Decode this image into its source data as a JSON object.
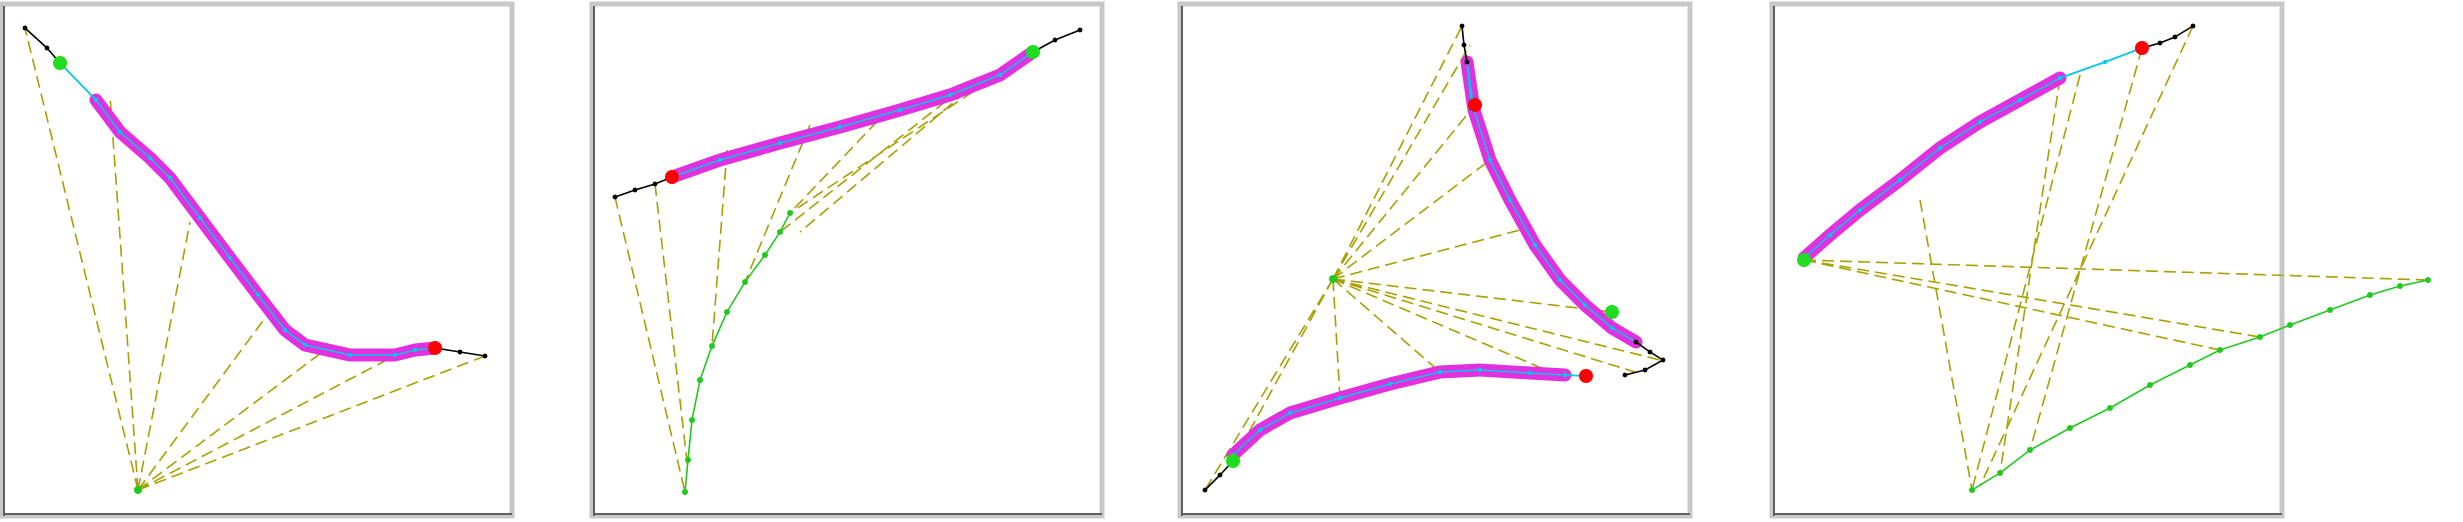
{
  "colors": {
    "background": "#ffffff",
    "frame": "#c8c8c8",
    "frame_dark": "#606060",
    "guide_dash": "#a8a000",
    "highlight_band": "#e030e0",
    "cyan_path": "#00c8e8",
    "green_path": "#20c820",
    "black_path": "#000000",
    "red_marker": "#ff0000",
    "green_marker": "#20dd20"
  },
  "panels": [
    {
      "id": "panel-1",
      "black_tail_start": [
        [
          25,
          28
        ],
        [
          47,
          48
        ],
        [
          60,
          63
        ]
      ],
      "cyan_segment": [
        [
          60,
          63
        ],
        [
          96,
          100
        ]
      ],
      "magenta_band": [
        [
          96,
          100
        ],
        [
          120,
          132
        ],
        [
          150,
          158
        ],
        [
          170,
          178
        ],
        [
          200,
          218
        ],
        [
          230,
          258
        ],
        [
          258,
          295
        ],
        [
          285,
          330
        ],
        [
          305,
          345
        ],
        [
          350,
          355
        ],
        [
          395,
          355
        ],
        [
          415,
          350
        ],
        [
          435,
          348
        ]
      ],
      "black_tail_end": [
        [
          435,
          348
        ],
        [
          460,
          352
        ],
        [
          485,
          356
        ]
      ],
      "red_marker": [
        435,
        348
      ],
      "green_marker": [
        60,
        63
      ],
      "green_path": [],
      "hub": [
        138,
        490
      ],
      "fan_targets": [
        [
          25,
          28
        ],
        [
          110,
          96
        ],
        [
          190,
          222
        ],
        [
          265,
          318
        ],
        [
          325,
          350
        ],
        [
          400,
          353
        ],
        [
          485,
          356
        ]
      ]
    },
    {
      "id": "panel-2",
      "black_tail_start": [
        [
          615,
          197
        ],
        [
          635,
          190
        ],
        [
          655,
          184
        ],
        [
          672,
          177
        ]
      ],
      "cyan_segment": [],
      "magenta_band": [
        [
          672,
          177
        ],
        [
          720,
          160
        ],
        [
          780,
          143
        ],
        [
          840,
          127
        ],
        [
          900,
          110
        ],
        [
          950,
          95
        ],
        [
          1000,
          75
        ],
        [
          1033,
          52
        ]
      ],
      "black_tail_end": [
        [
          1033,
          52
        ],
        [
          1055,
          40
        ],
        [
          1080,
          30
        ]
      ],
      "red_marker": [
        672,
        177
      ],
      "green_marker": [
        1033,
        52
      ],
      "green_path": [
        [
          685,
          492
        ],
        [
          688,
          460
        ],
        [
          692,
          420
        ],
        [
          700,
          380
        ],
        [
          712,
          346
        ],
        [
          727,
          312
        ],
        [
          745,
          282
        ],
        [
          765,
          255
        ],
        [
          780,
          232
        ],
        [
          790,
          213
        ]
      ],
      "hub": null,
      "fan_pairs": [
        [
          [
            615,
            197
          ],
          [
            685,
            492
          ]
        ],
        [
          [
            655,
            184
          ],
          [
            688,
            470
          ]
        ],
        [
          [
            727,
            150
          ],
          [
            712,
            346
          ]
        ],
        [
          [
            810,
            125
          ],
          [
            745,
            282
          ]
        ],
        [
          [
            890,
            108
          ],
          [
            790,
            213
          ]
        ],
        [
          [
            1033,
            52
          ],
          [
            790,
            213
          ]
        ],
        [
          [
            980,
            80
          ],
          [
            800,
            232
          ]
        ],
        [
          [
            960,
            90
          ],
          [
            780,
            232
          ]
        ]
      ]
    },
    {
      "id": "panel-3",
      "black_tail_start": [
        [
          1462,
          26
        ],
        [
          1464,
          45
        ],
        [
          1467,
          62
        ]
      ],
      "cyan_segment": [
        [
          1467,
          62
        ],
        [
          1472,
          110
        ]
      ],
      "magenta_band": [
        [
          1467,
          62
        ],
        [
          1474,
          110
        ],
        [
          1490,
          160
        ],
        [
          1510,
          200
        ],
        [
          1535,
          245
        ],
        [
          1560,
          280
        ],
        [
          1585,
          305
        ],
        [
          1612,
          328
        ],
        [
          1636,
          342
        ]
      ],
      "black_tail_end": [
        [
          1636,
          342
        ],
        [
          1650,
          352
        ],
        [
          1663,
          360
        ],
        [
          1645,
          370
        ],
        [
          1625,
          375
        ]
      ],
      "magenta_band_2": [
        [
          1233,
          455
        ],
        [
          1260,
          430
        ],
        [
          1290,
          413
        ],
        [
          1340,
          398
        ],
        [
          1390,
          384
        ],
        [
          1440,
          372
        ],
        [
          1480,
          370
        ],
        [
          1530,
          373
        ],
        [
          1565,
          375
        ]
      ],
      "cyan_segment_2": [
        [
          1565,
          375
        ],
        [
          1586,
          376
        ]
      ],
      "red_marker": [
        1586,
        376
      ],
      "red_marker_2": [
        1475,
        105
      ],
      "green_marker": [
        1612,
        312
      ],
      "green_marker_2": [
        1233,
        461
      ],
      "black_tail_2": [
        [
          1205,
          490
        ],
        [
          1220,
          475
        ],
        [
          1233,
          461
        ]
      ],
      "green_path": [],
      "hub": [
        1333,
        279
      ],
      "fan_targets": [
        [
          1462,
          26
        ],
        [
          1470,
          45
        ],
        [
          1475,
          105
        ],
        [
          1490,
          160
        ],
        [
          1520,
          230
        ],
        [
          1612,
          312
        ],
        [
          1660,
          360
        ],
        [
          1635,
          372
        ],
        [
          1560,
          376
        ],
        [
          1440,
          372
        ],
        [
          1340,
          398
        ],
        [
          1233,
          461
        ],
        [
          1205,
          490
        ]
      ]
    },
    {
      "id": "panel-4",
      "black_tail_start": [
        [
          2193,
          26
        ],
        [
          2175,
          37
        ],
        [
          2160,
          43
        ],
        [
          2142,
          48
        ]
      ],
      "cyan_segment": [
        [
          2142,
          48
        ],
        [
          2105,
          62
        ],
        [
          2060,
          78
        ]
      ],
      "magenta_band": [
        [
          2060,
          78
        ],
        [
          2020,
          100
        ],
        [
          1980,
          122
        ],
        [
          1940,
          148
        ],
        [
          1900,
          180
        ],
        [
          1860,
          210
        ],
        [
          1830,
          235
        ],
        [
          1804,
          258
        ]
      ],
      "black_tail_end": [],
      "red_marker": [
        2142,
        48
      ],
      "green_marker": [
        1804,
        260
      ],
      "green_path": [
        [
          1972,
          490
        ],
        [
          2000,
          473
        ],
        [
          2030,
          450
        ],
        [
          2070,
          428
        ],
        [
          2110,
          408
        ],
        [
          2150,
          385
        ],
        [
          2190,
          365
        ],
        [
          2220,
          350
        ],
        [
          2260,
          337
        ],
        [
          2290,
          325
        ],
        [
          2330,
          310
        ],
        [
          2370,
          295
        ],
        [
          2400,
          286
        ],
        [
          2428,
          280
        ]
      ],
      "hub": null,
      "fan_pairs": [
        [
          [
            1804,
            260
          ],
          [
            2428,
            280
          ]
        ],
        [
          [
            1804,
            260
          ],
          [
            2220,
            350
          ]
        ],
        [
          [
            1804,
            260
          ],
          [
            2260,
            337
          ]
        ],
        [
          [
            1920,
            200
          ],
          [
            1972,
            490
          ]
        ],
        [
          [
            2080,
            75
          ],
          [
            1972,
            490
          ]
        ],
        [
          [
            2193,
            26
          ],
          [
            1980,
            486
          ]
        ],
        [
          [
            2060,
            78
          ],
          [
            2000,
            473
          ]
        ],
        [
          [
            2142,
            48
          ],
          [
            2030,
            450
          ]
        ]
      ]
    }
  ]
}
